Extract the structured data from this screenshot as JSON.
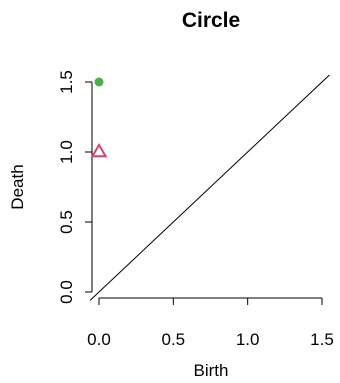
{
  "chart_data": {
    "type": "scatter",
    "title": "Circle",
    "xlabel": "Birth",
    "ylabel": "Death",
    "xlim": [
      0,
      1.5
    ],
    "ylim": [
      0,
      1.5
    ],
    "xticks": [
      "0.0",
      "0.5",
      "1.0",
      "1.5"
    ],
    "yticks": [
      "0.0",
      "0.5",
      "1.0",
      "1.5"
    ],
    "grid": false,
    "diagonal": true,
    "series": [
      {
        "marker": "circle",
        "color": "#4daf4a",
        "points": [
          {
            "x": 0.0,
            "y": 1.5
          }
        ]
      },
      {
        "marker": "triangle",
        "color": "#d6456a",
        "points": [
          {
            "x": 0.0,
            "y": 1.0
          }
        ]
      }
    ]
  }
}
